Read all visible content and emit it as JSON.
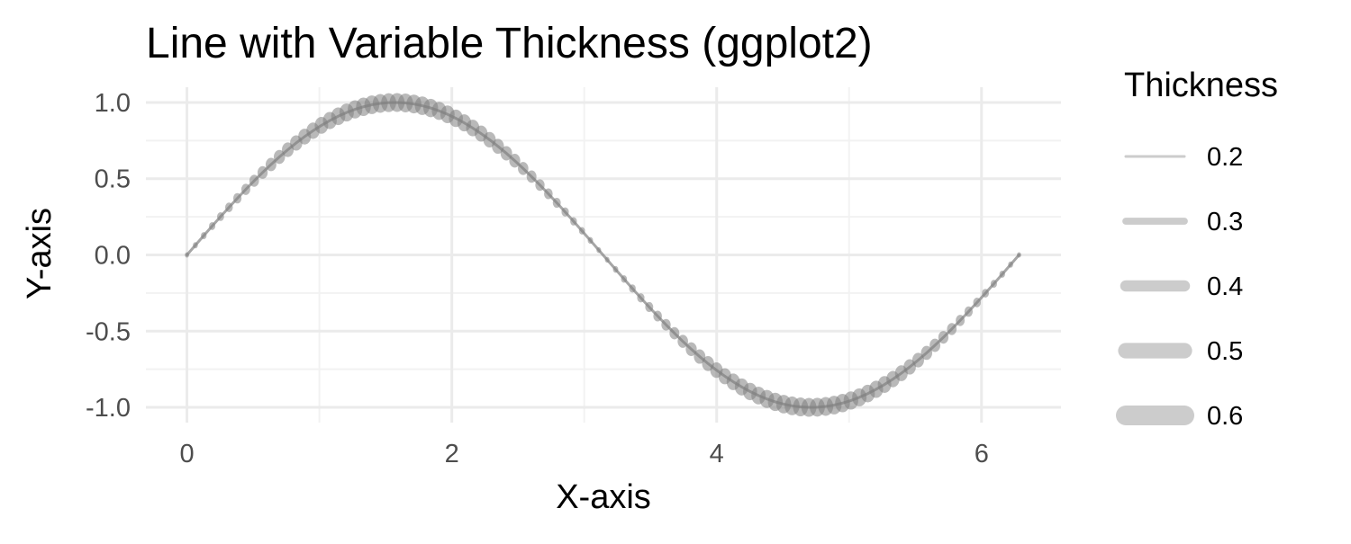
{
  "chart_data": {
    "type": "line",
    "title": "Line with Variable Thickness (ggplot2)",
    "xlabel": "X-axis",
    "ylabel": "Y-axis",
    "xlim": [
      -0.31,
      6.6
    ],
    "ylim": [
      -1.1,
      1.1
    ],
    "x_ticks": [
      0,
      2,
      4,
      6
    ],
    "x_tick_labels": [
      "0",
      "2",
      "4",
      "6"
    ],
    "y_ticks": [
      -1.0,
      -0.5,
      0.0,
      0.5,
      1.0
    ],
    "y_tick_labels": [
      "-1.0",
      "-0.5",
      "0.0",
      "0.5",
      "1.0"
    ],
    "grid": true,
    "line_color": "#808080",
    "line_opacity": 0.7,
    "function": "y = sin(x), thickness = 0.1 + 0.5*|sin(x)|",
    "x_range": [
      0,
      6.2832
    ],
    "n_points": 100,
    "legend": {
      "title": "Thickness",
      "position": "right",
      "color": "#cccccc",
      "items": [
        {
          "value": 0.2,
          "label": "0.2"
        },
        {
          "value": 0.3,
          "label": "0.3"
        },
        {
          "value": 0.4,
          "label": "0.4"
        },
        {
          "value": 0.5,
          "label": "0.5"
        },
        {
          "value": 0.6,
          "label": "0.6"
        }
      ]
    }
  }
}
